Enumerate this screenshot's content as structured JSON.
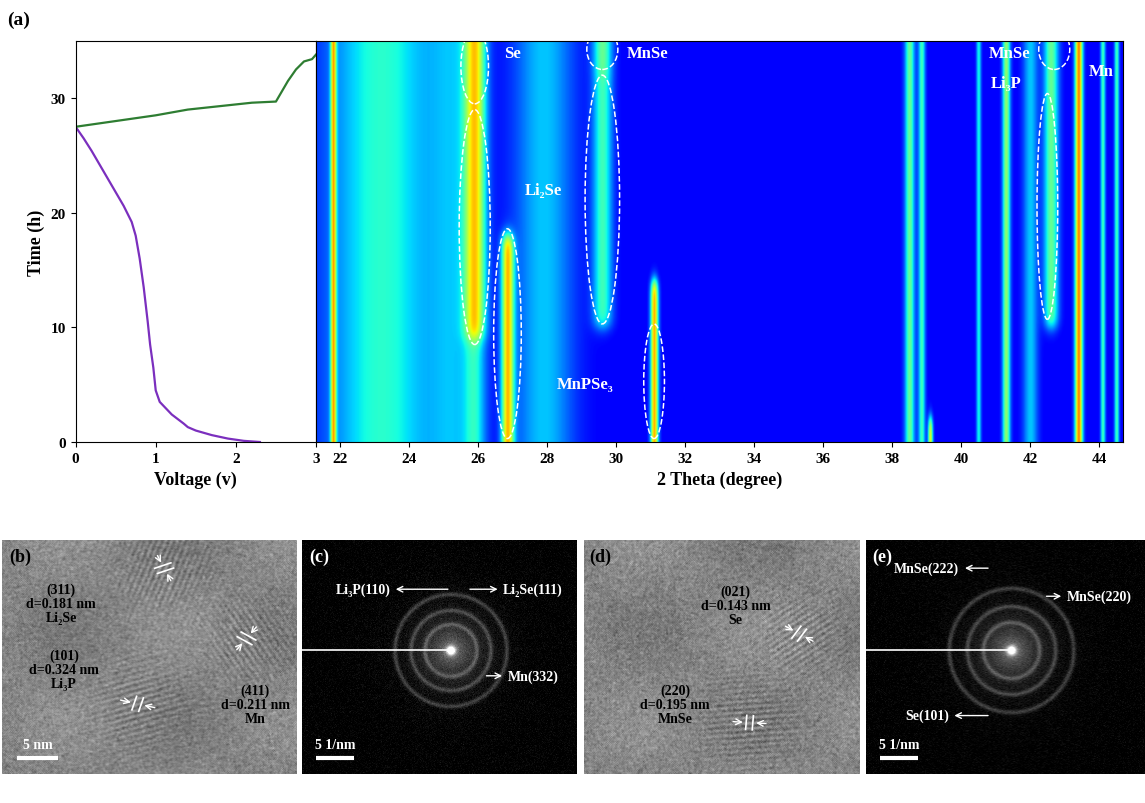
{
  "chart_data": [
    {
      "type": "line",
      "label": "(a)",
      "x_label": "Voltage (v)",
      "y_label": "Time (h)",
      "xlim": [
        0,
        3
      ],
      "xticks": [
        0,
        1,
        2,
        3
      ],
      "ylim": [
        0,
        35
      ],
      "yticks": [
        0,
        10,
        20,
        30
      ],
      "series": [
        {
          "color": "#7b2fbe",
          "x": [
            2.3,
            2.1,
            1.9,
            1.7,
            1.5,
            1.4,
            1.35,
            1.2,
            1.05,
            1.0,
            0.97,
            0.93,
            0.9,
            0.85,
            0.8,
            0.75,
            0.7,
            0.6,
            0.5,
            0.4,
            0.3,
            0.2,
            0.1,
            0.0
          ],
          "values": [
            0.0,
            0.1,
            0.3,
            0.6,
            1.0,
            1.3,
            1.6,
            2.4,
            3.5,
            4.5,
            6.5,
            8.5,
            10.5,
            13.5,
            16.0,
            18.0,
            19.2,
            20.6,
            21.8,
            23.0,
            24.2,
            25.4,
            26.5,
            27.5
          ]
        },
        {
          "color": "#2e7d32",
          "x": [
            0.0,
            0.3,
            0.6,
            1.0,
            1.4,
            1.8,
            2.2,
            2.5,
            2.55,
            2.65,
            2.75,
            2.85,
            2.95,
            3.0
          ],
          "values": [
            27.5,
            27.8,
            28.1,
            28.5,
            29.0,
            29.3,
            29.6,
            29.7,
            30.3,
            31.5,
            32.5,
            33.2,
            33.4,
            33.8
          ]
        }
      ]
    },
    {
      "type": "heatmap",
      "x_label": "2 Theta (degree)",
      "xlim": [
        21.3,
        44.7
      ],
      "xticks": [
        22,
        24,
        26,
        28,
        30,
        32,
        34,
        36,
        38,
        40,
        42,
        44
      ],
      "ylim": [
        0,
        35
      ],
      "tick_labels": "x",
      "background": 0.12,
      "peaks": [
        {
          "position": 23.2,
          "width": 1.1,
          "t": [
            0,
            35
          ],
          "intensity": 0.28
        },
        {
          "position": 21.8,
          "width": 0.06,
          "t": [
            0,
            35
          ],
          "intensity": 0.5
        },
        {
          "position": 25.3,
          "width": 0.5,
          "t": [
            0,
            35
          ],
          "intensity": 0.15
        },
        {
          "position": 25.9,
          "width": 0.22,
          "t": [
            29,
            35
          ],
          "intensity": 0.5
        },
        {
          "position": 25.9,
          "width": 0.22,
          "t": [
            9,
            29
          ],
          "intensity": 0.5
        },
        {
          "position": 25.9,
          "width": 0.22,
          "t": [
            0,
            9
          ],
          "intensity": 0.2
        },
        {
          "position": 26.85,
          "width": 0.13,
          "t": [
            0,
            18
          ],
          "intensity": 0.55
        },
        {
          "position": 27.9,
          "width": 0.6,
          "t": [
            0,
            35
          ],
          "intensity": 0.2
        },
        {
          "position": 29.6,
          "width": 0.2,
          "t": [
            32,
            35
          ],
          "intensity": 0.35
        },
        {
          "position": 29.6,
          "width": 0.2,
          "t": [
            10,
            32
          ],
          "intensity": 0.3
        },
        {
          "position": 31.1,
          "width": 0.08,
          "t": [
            0,
            14
          ],
          "intensity": 0.6
        },
        {
          "position": 38.5,
          "width": 0.1,
          "t": [
            0,
            35
          ],
          "intensity": 0.35
        },
        {
          "position": 38.85,
          "width": 0.07,
          "t": [
            0,
            35
          ],
          "intensity": 0.3
        },
        {
          "position": 39.1,
          "width": 0.05,
          "t": [
            0,
            2
          ],
          "intensity": 0.5
        },
        {
          "position": 40.5,
          "width": 0.05,
          "t": [
            0,
            35
          ],
          "intensity": 0.25
        },
        {
          "position": 41.3,
          "width": 0.08,
          "t": [
            0,
            35
          ],
          "intensity": 0.4
        },
        {
          "position": 42.0,
          "width": 0.15,
          "t": [
            0,
            35
          ],
          "intensity": 0.2
        },
        {
          "position": 42.6,
          "width": 0.15,
          "t": [
            10,
            35
          ],
          "intensity": 0.35
        },
        {
          "position": 43.4,
          "width": 0.08,
          "t": [
            0,
            35
          ],
          "intensity": 0.65
        },
        {
          "position": 44.1,
          "width": 0.05,
          "t": [
            0,
            35
          ],
          "intensity": 0.3
        },
        {
          "position": 44.5,
          "width": 0.05,
          "t": [
            0,
            35
          ],
          "intensity": 0.3
        }
      ],
      "annotations": [
        {
          "text": "Se",
          "x": 27.0,
          "y": 33.9,
          "regions": [
            {
              "x": 25.9,
              "t": [
                29.5,
                36.0
              ],
              "width": 0.8
            }
          ]
        },
        {
          "text": "Li₂Se",
          "x": 27.9,
          "y": 22.0,
          "regions": [
            {
              "x": 25.9,
              "t": [
                8.5,
                29.0
              ],
              "width": 0.9
            },
            {
              "x": 29.6,
              "t": [
                10.3,
                32.0
              ],
              "width": 1.0
            }
          ]
        },
        {
          "text": "MnSe",
          "x": 30.9,
          "y": 33.9,
          "regions": [
            {
              "x": 29.6,
              "t": [
                32.5,
                36.0
              ],
              "width": 0.9
            }
          ]
        },
        {
          "text": "MnPSe₃",
          "x": 29.1,
          "y": 5.1,
          "regions": [
            {
              "x": 26.85,
              "t": [
                0.3,
                18.6
              ],
              "width": 0.8
            },
            {
              "x": 31.1,
              "t": [
                0.3,
                10.3
              ],
              "width": 0.6
            }
          ]
        },
        {
          "text": "MnSe",
          "x": 41.4,
          "y": 33.9,
          "regions": [
            {
              "x": 42.7,
              "t": [
                32.5,
                36.0
              ],
              "width": 0.9
            }
          ]
        },
        {
          "text": "Li₃P",
          "x": 41.3,
          "y": 31.3,
          "regions": [
            {
              "x": 42.5,
              "t": [
                10.7,
                30.4
              ],
              "width": 0.6
            }
          ]
        },
        {
          "text": "Mn",
          "x": 44.05,
          "y": 32.4
        }
      ]
    }
  ],
  "panels": [
    {
      "label": "(b)",
      "type": "image",
      "scale_bar": "5 nm",
      "notes": [
        {
          "plane": "(311)",
          "d": "d=0.181 nm",
          "phase": "Li₂Se"
        },
        {
          "plane": "(411)",
          "d": "d=0.211 nm",
          "phase": "Mn"
        },
        {
          "plane": "(101)",
          "d": "d=0.324 nm",
          "phase": "Li₃P"
        }
      ]
    },
    {
      "label": "(c)",
      "type": "diffraction",
      "scale_bar": "5 1/nm",
      "rings": [
        "Li₃P(110)",
        "Li₂Se(111)",
        "Mn(332)"
      ]
    },
    {
      "label": "(d)",
      "type": "image",
      "notes": [
        {
          "plane": "(021)",
          "d": "d=0.143 nm",
          "phase": "Se"
        },
        {
          "plane": "(220)",
          "d": "d=0.195 nm",
          "phase": "MnSe"
        }
      ]
    },
    {
      "label": "(e)",
      "type": "diffraction",
      "scale_bar": "5 1/nm",
      "rings": [
        "MnSe(222)",
        "MnSe(220)",
        "Se(101)"
      ]
    }
  ]
}
